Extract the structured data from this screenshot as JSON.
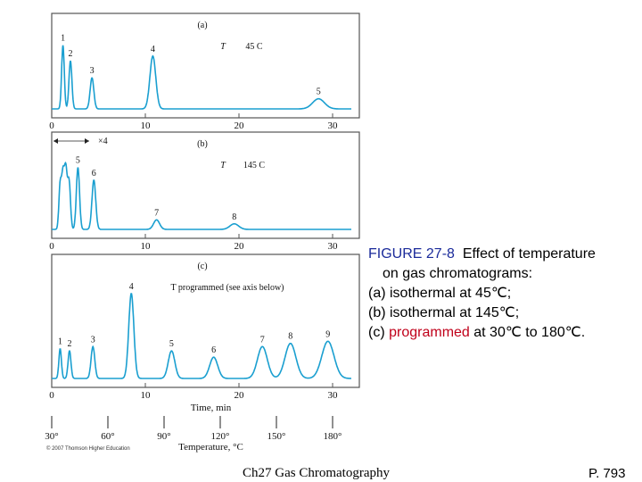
{
  "chart_data": [
    {
      "type": "line",
      "panel_label": "(a)",
      "condition_symbol": "T",
      "condition_text": "45 C",
      "xlim": [
        0,
        32
      ],
      "xticks": [
        0,
        10,
        20,
        30
      ],
      "peaks": [
        {
          "label": "1",
          "time": 1.2,
          "height": 0.82
        },
        {
          "label": "2",
          "time": 2.0,
          "height": 0.62
        },
        {
          "label": "3",
          "time": 4.3,
          "height": 0.4
        },
        {
          "label": "4",
          "time": 10.8,
          "height": 0.68
        },
        {
          "label": "5",
          "time": 28.5,
          "height": 0.13
        }
      ]
    },
    {
      "type": "line",
      "panel_label": "(b)",
      "condition_symbol": "T",
      "condition_text": "145 C",
      "annotation": "×4",
      "xlim": [
        0,
        32
      ],
      "xticks": [
        0,
        10,
        20,
        30
      ],
      "peaks": [
        {
          "label": "",
          "time": 0.9,
          "height": 0.55
        },
        {
          "label": "",
          "time": 1.2,
          "height": 0.65
        },
        {
          "label": "",
          "time": 1.5,
          "height": 0.72
        },
        {
          "label": "",
          "time": 1.85,
          "height": 0.6
        },
        {
          "label": "5",
          "time": 2.8,
          "height": 0.78
        },
        {
          "label": "6",
          "time": 4.5,
          "height": 0.62
        },
        {
          "label": "7",
          "time": 11.2,
          "height": 0.12
        },
        {
          "label": "8",
          "time": 19.5,
          "height": 0.07
        }
      ]
    },
    {
      "type": "line",
      "panel_label": "(c)",
      "condition_text": "T programmed (see axis below)",
      "xlabel": "Time, min",
      "xlim": [
        0,
        32
      ],
      "xticks": [
        0,
        10,
        20,
        30
      ],
      "secondary_axis": {
        "label": "Temperature, °C",
        "ticks": [
          "30°",
          "60°",
          "90°",
          "120°",
          "150°",
          "180°"
        ],
        "tick_times": [
          0,
          6,
          12,
          18,
          24,
          30
        ]
      },
      "peaks": [
        {
          "label": "1",
          "time": 0.9,
          "height": 0.28
        },
        {
          "label": "2",
          "time": 1.9,
          "height": 0.26
        },
        {
          "label": "3",
          "time": 4.4,
          "height": 0.3
        },
        {
          "label": "4",
          "time": 8.5,
          "height": 0.8
        },
        {
          "label": "5",
          "time": 12.8,
          "height": 0.26
        },
        {
          "label": "6",
          "time": 17.3,
          "height": 0.2
        },
        {
          "label": "7",
          "time": 22.5,
          "height": 0.3
        },
        {
          "label": "8",
          "time": 25.5,
          "height": 0.33
        },
        {
          "label": "9",
          "time": 29.5,
          "height": 0.35
        }
      ]
    }
  ],
  "copyright": "© 2007 Thomson Higher Education",
  "caption": {
    "figure_number": "FIGURE 27-8",
    "line1_rest": "Effect of temperature",
    "line2": "on gas chromatograms:",
    "line3": "(a) isothermal at 45℃;",
    "line4": "(b) isothermal at 145℃;",
    "line5_prefix": "(c) ",
    "line5_highlight": "programmed",
    "line5_suffix": " at 30℃ to 180℃."
  },
  "footer": {
    "left": "Ch27 Gas Chromatography",
    "right": "P. 793"
  },
  "colors": {
    "trace": "#1a9fd0",
    "frame": "#555555",
    "panel_fill": "#ffffff",
    "caption_number": "#1a2a9a",
    "highlight": "#c0001a"
  }
}
